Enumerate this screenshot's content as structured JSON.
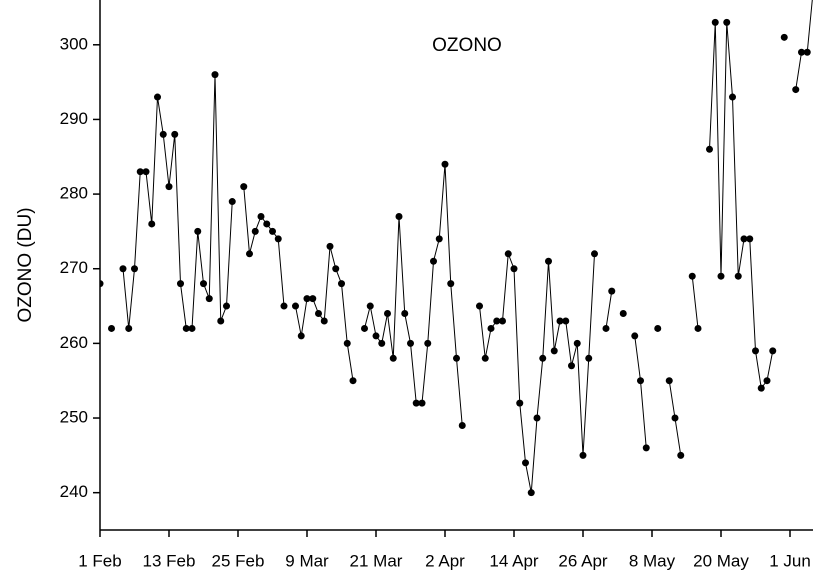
{
  "chart_data": {
    "type": "line",
    "title": "OZONO",
    "ylabel": "OZONO (DU)",
    "x": [
      0,
      1,
      2,
      3,
      4,
      5,
      6,
      7,
      8,
      9,
      10,
      11,
      12,
      13,
      14,
      15,
      16,
      17,
      18,
      19,
      20,
      21,
      22,
      23,
      24,
      25,
      26,
      27,
      28,
      29,
      30,
      31,
      32,
      33,
      34,
      35,
      36,
      37,
      38,
      39,
      40,
      41,
      42,
      43,
      44,
      45,
      46,
      47,
      48,
      49,
      50,
      51,
      52,
      53,
      54,
      55,
      56,
      57,
      58,
      59,
      60,
      61,
      62,
      63,
      64,
      65,
      66,
      67,
      68,
      69,
      70,
      71,
      72,
      73,
      74,
      75,
      76,
      77,
      78,
      79,
      80,
      81,
      82,
      83,
      84,
      85,
      86,
      87,
      88,
      89,
      90,
      91,
      92,
      93,
      94,
      95,
      96,
      97,
      98,
      99,
      100,
      101,
      102,
      103,
      104,
      105,
      106,
      107,
      108,
      109,
      110,
      111,
      112,
      113,
      114,
      115,
      116,
      117,
      118,
      119,
      120,
      121,
      122,
      123,
      124
    ],
    "series": [
      {
        "name": "OZONO",
        "color": "#000000",
        "values": [
          268,
          null,
          262,
          null,
          270,
          262,
          270,
          283,
          283,
          276,
          293,
          288,
          281,
          288,
          268,
          262,
          262,
          275,
          268,
          266,
          296,
          263,
          265,
          279,
          null,
          281,
          272,
          275,
          277,
          276,
          275,
          274,
          265,
          null,
          265,
          261,
          266,
          266,
          264,
          263,
          273,
          270,
          268,
          260,
          255,
          null,
          262,
          265,
          261,
          260,
          264,
          258,
          277,
          264,
          260,
          252,
          252,
          260,
          271,
          274,
          284,
          268,
          258,
          249,
          null,
          null,
          265,
          258,
          262,
          263,
          263,
          272,
          270,
          252,
          244,
          240,
          250,
          258,
          271,
          259,
          263,
          263,
          257,
          260,
          245,
          258,
          272,
          null,
          262,
          267,
          null,
          264,
          null,
          261,
          255,
          246,
          null,
          262,
          null,
          255,
          250,
          245,
          null,
          269,
          262,
          null,
          286,
          303,
          269,
          303,
          293,
          269,
          274,
          274,
          259,
          254,
          255,
          259,
          null,
          301,
          null,
          294,
          299,
          299,
          307
        ]
      }
    ],
    "xlim": [
      0,
      124
    ],
    "xticks": [
      {
        "value": 0,
        "label": "1 Feb"
      },
      {
        "value": 12,
        "label": "13 Feb"
      },
      {
        "value": 24,
        "label": "25 Feb"
      },
      {
        "value": 36,
        "label": "9 Mar"
      },
      {
        "value": 48,
        "label": "21 Mar"
      },
      {
        "value": 60,
        "label": "2 Apr"
      },
      {
        "value": 72,
        "label": "14 Apr"
      },
      {
        "value": 84,
        "label": "26 Apr"
      },
      {
        "value": 96,
        "label": "8 May"
      },
      {
        "value": 108,
        "label": "20 May"
      },
      {
        "value": 120,
        "label": "1 Jun"
      }
    ],
    "ylim": [
      235,
      306
    ],
    "yticks": [
      240,
      250,
      260,
      270,
      280,
      290,
      300
    ],
    "grid": false
  }
}
